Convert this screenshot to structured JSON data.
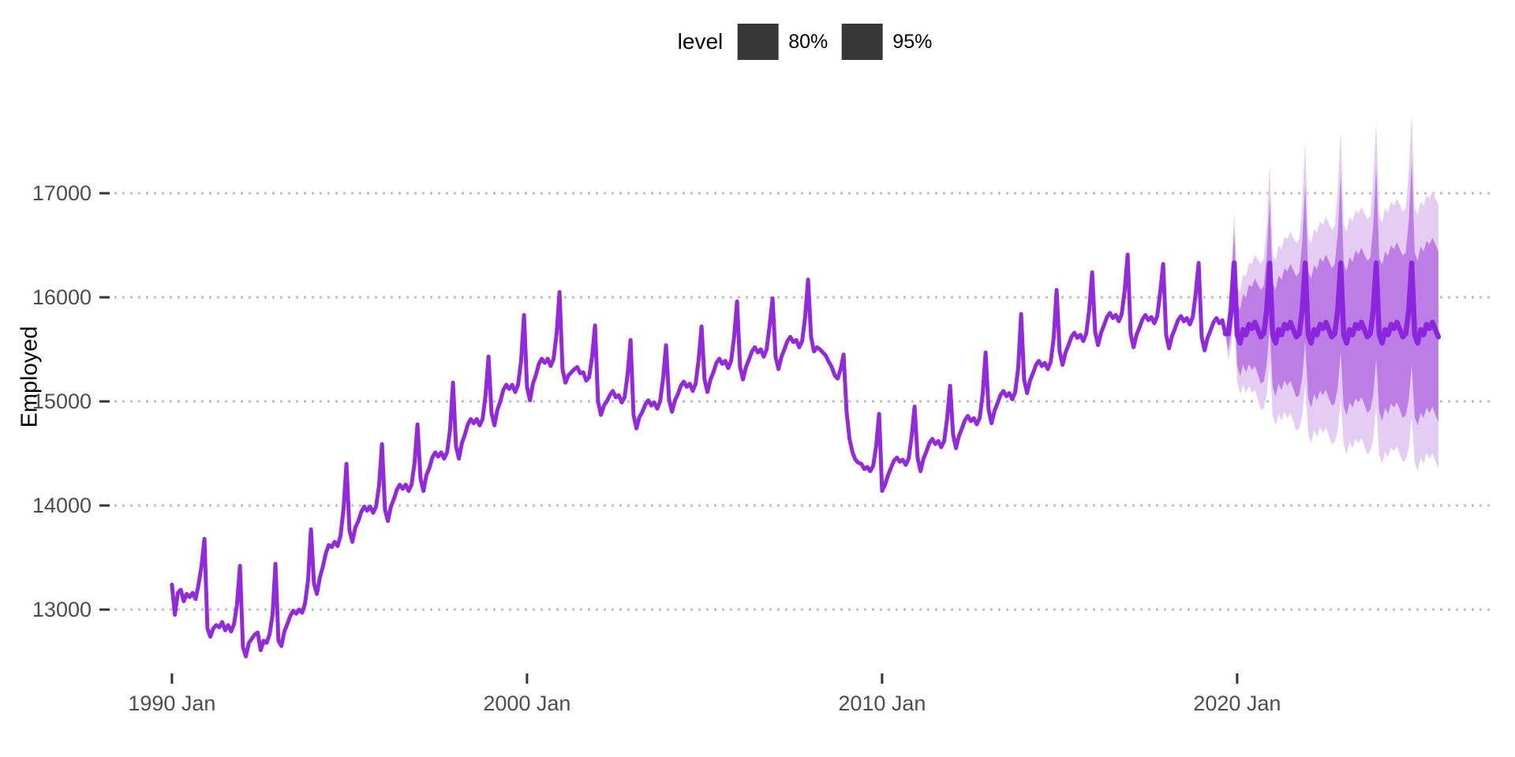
{
  "page": {
    "background": "#FFFFFF"
  },
  "chart_data": {
    "type": "line",
    "title": "",
    "xlabel": "",
    "ylabel": "Employed",
    "legend": {
      "title": "level",
      "entries": [
        "80%",
        "95%"
      ],
      "position": "top-center"
    },
    "x_ticks": [
      {
        "label": "1990 Jan",
        "value": 1990
      },
      {
        "label": "2000 Jan",
        "value": 2000
      },
      {
        "label": "2010 Jan",
        "value": 2010
      },
      {
        "label": "2020 Jan",
        "value": 2020
      }
    ],
    "y_ticks": [
      {
        "label": "13000",
        "value": 13000
      },
      {
        "label": "14000",
        "value": 14000
      },
      {
        "label": "15000",
        "value": 15000
      },
      {
        "label": "16000",
        "value": 16000
      },
      {
        "label": "17000",
        "value": 17000
      }
    ],
    "layout": {
      "xlim": [
        1988.38,
        2027.27
      ],
      "ylim": [
        12417,
        18061
      ],
      "grid": "horizontal-dotted",
      "legend_position": "top"
    },
    "colors": {
      "historical_line": "#9229DC",
      "forecast_line": "#8B26DE",
      "level_80": "#BC7EE4",
      "level_95": "#E4CCF2",
      "legend_key": "#373737",
      "gridline": "#BEBEBE",
      "tick_text": "#4D4D4D",
      "tick_mark": "#333333"
    },
    "series": {
      "historical": {
        "name": "Employed",
        "start_year": 1990,
        "start_month": 1,
        "frequency": "monthly",
        "values": [
          13240,
          12950,
          13160,
          13190,
          13080,
          13150,
          13120,
          13160,
          13100,
          13240,
          13420,
          13680,
          12820,
          12740,
          12820,
          12850,
          12830,
          12880,
          12800,
          12850,
          12790,
          12860,
          13050,
          13420,
          12640,
          12550,
          12680,
          12720,
          12760,
          12780,
          12610,
          12700,
          12680,
          12760,
          12950,
          13440,
          12700,
          12650,
          12790,
          12860,
          12940,
          12990,
          12960,
          13000,
          12970,
          13060,
          13280,
          13770,
          13250,
          13150,
          13310,
          13410,
          13540,
          13620,
          13600,
          13650,
          13610,
          13710,
          13970,
          14400,
          13760,
          13650,
          13790,
          13850,
          13940,
          13990,
          13950,
          13990,
          13930,
          13990,
          14190,
          14590,
          13960,
          13850,
          13990,
          14060,
          14150,
          14200,
          14160,
          14200,
          14140,
          14200,
          14410,
          14780,
          14260,
          14140,
          14290,
          14360,
          14460,
          14510,
          14470,
          14510,
          14450,
          14510,
          14730,
          15180,
          14570,
          14450,
          14600,
          14680,
          14780,
          14830,
          14790,
          14830,
          14770,
          14830,
          15060,
          15430,
          14890,
          14770,
          14920,
          15000,
          15110,
          15160,
          15120,
          15160,
          15090,
          15160,
          15390,
          15830,
          15140,
          15010,
          15170,
          15250,
          15360,
          15410,
          15370,
          15410,
          15340,
          15410,
          15650,
          16050,
          15310,
          15180,
          15250,
          15280,
          15310,
          15330,
          15270,
          15280,
          15200,
          15230,
          15430,
          15730,
          15000,
          14870,
          14960,
          15000,
          15060,
          15100,
          15040,
          15060,
          14990,
          15040,
          15260,
          15590,
          14870,
          14740,
          14850,
          14900,
          14970,
          15010,
          14960,
          14990,
          14930,
          15000,
          15220,
          15540,
          15020,
          14900,
          15010,
          15070,
          15150,
          15190,
          15140,
          15170,
          15100,
          15170,
          15400,
          15720,
          15210,
          15090,
          15210,
          15280,
          15370,
          15410,
          15360,
          15390,
          15320,
          15390,
          15620,
          15960,
          15330,
          15210,
          15330,
          15400,
          15480,
          15520,
          15470,
          15500,
          15430,
          15500,
          15730,
          15990,
          15430,
          15310,
          15430,
          15500,
          15580,
          15620,
          15570,
          15590,
          15520,
          15580,
          15810,
          16170,
          15620,
          15480,
          15520,
          15500,
          15470,
          15440,
          15380,
          15330,
          15250,
          15220,
          15310,
          15450,
          14900,
          14640,
          14510,
          14440,
          14410,
          14400,
          14350,
          14370,
          14330,
          14380,
          14570,
          14880,
          14140,
          14200,
          14290,
          14360,
          14430,
          14460,
          14420,
          14440,
          14390,
          14450,
          14670,
          14950,
          14460,
          14330,
          14450,
          14520,
          14600,
          14640,
          14590,
          14620,
          14560,
          14620,
          14840,
          15150,
          14680,
          14550,
          14670,
          14740,
          14820,
          14860,
          14810,
          14840,
          14780,
          14840,
          15070,
          15470,
          14920,
          14790,
          14910,
          14980,
          15060,
          15100,
          15050,
          15080,
          15020,
          15090,
          15320,
          15840,
          15210,
          15080,
          15200,
          15270,
          15350,
          15390,
          15340,
          15370,
          15310,
          15380,
          15610,
          16070,
          15480,
          15350,
          15470,
          15540,
          15620,
          15660,
          15610,
          15640,
          15580,
          15650,
          15880,
          16240,
          15670,
          15540,
          15660,
          15730,
          15810,
          15850,
          15800,
          15830,
          15770,
          15840,
          16070,
          16410,
          15650,
          15520,
          15640,
          15710,
          15790,
          15830,
          15780,
          15810,
          15750,
          15820,
          16050,
          16320,
          15640,
          15510,
          15630,
          15700,
          15780,
          15820,
          15770,
          15800,
          15740,
          15810,
          16040,
          16330,
          15620,
          15490,
          15610,
          15680,
          15760,
          15800,
          15750,
          15780,
          15650
        ]
      },
      "forecast": {
        "name": "forecast",
        "start_year": 2019,
        "start_month": 10,
        "frequency": "monthly",
        "mean": [
          15650,
          15880,
          16330,
          15640,
          15560,
          15690,
          15640,
          15740,
          15700,
          15760,
          15690,
          15620,
          15650,
          15880,
          16330,
          15640,
          15560,
          15690,
          15640,
          15740,
          15700,
          15760,
          15690,
          15620,
          15650,
          15880,
          16330,
          15640,
          15560,
          15690,
          15640,
          15740,
          15700,
          15760,
          15690,
          15620,
          15650,
          15880,
          16330,
          15640,
          15560,
          15690,
          15640,
          15740,
          15700,
          15760,
          15690,
          15620,
          15650,
          15880,
          16330,
          15640,
          15560,
          15690,
          15640,
          15740,
          15700,
          15760,
          15690,
          15620,
          15650,
          15880,
          16330,
          15640,
          15560,
          15690,
          15640,
          15740,
          15700,
          15760,
          15690,
          15620
        ],
        "lo80": [
          15490,
          15650,
          16010,
          15350,
          15240,
          15350,
          15280,
          15360,
          15300,
          15340,
          15260,
          15170,
          15190,
          15360,
          15720,
          15140,
          15050,
          15170,
          15110,
          15200,
          15150,
          15200,
          15120,
          15040,
          15060,
          15230,
          15580,
          15030,
          14940,
          15070,
          15010,
          15100,
          15060,
          15110,
          15030,
          14960,
          14980,
          15140,
          15480,
          14950,
          14870,
          14990,
          14940,
          15030,
          14990,
          15040,
          14970,
          14890,
          14920,
          15070,
          15410,
          14900,
          14810,
          14940,
          14880,
          14980,
          14940,
          14990,
          14920,
          14840,
          14870,
          15020,
          15350,
          14850,
          14770,
          14890,
          14840,
          14940,
          14890,
          14950,
          14870,
          14800
        ],
        "hi80": [
          15810,
          16110,
          16650,
          15930,
          15880,
          16030,
          16000,
          16120,
          16100,
          16180,
          16120,
          16070,
          16110,
          16400,
          16940,
          16140,
          16070,
          16210,
          16170,
          16280,
          16250,
          16320,
          16260,
          16200,
          16240,
          16530,
          17080,
          16250,
          16180,
          16310,
          16270,
          16380,
          16340,
          16410,
          16350,
          16280,
          16320,
          16620,
          17180,
          16330,
          16250,
          16390,
          16340,
          16450,
          16410,
          16480,
          16410,
          16350,
          16380,
          16690,
          17250,
          16380,
          16310,
          16440,
          16400,
          16500,
          16460,
          16530,
          16460,
          16400,
          16430,
          16740,
          17310,
          16430,
          16350,
          16490,
          16440,
          16540,
          16510,
          16570,
          16510,
          16440
        ],
        "lo95": [
          15400,
          15520,
          15840,
          15190,
          15070,
          15160,
          15080,
          15150,
          15080,
          15110,
          15020,
          14920,
          14930,
          15070,
          15380,
          14860,
          14770,
          14880,
          14820,
          14900,
          14840,
          14890,
          14810,
          14720,
          14740,
          14870,
          15160,
          14690,
          14600,
          14720,
          14660,
          14750,
          14700,
          14750,
          14670,
          14590,
          14610,
          14730,
          15010,
          14580,
          14490,
          14610,
          14550,
          14640,
          14600,
          14650,
          14570,
          14490,
          14520,
          14630,
          14960,
          14490,
          14400,
          14520,
          14470,
          14560,
          14520,
          14570,
          14490,
          14420,
          14440,
          14550,
          14850,
          14420,
          14330,
          14460,
          14400,
          14500,
          14450,
          14500,
          14430,
          14350
        ],
        "hi95": [
          15900,
          16240,
          16820,
          16090,
          16050,
          16220,
          16200,
          16330,
          16320,
          16410,
          16360,
          16320,
          16370,
          16690,
          17280,
          16420,
          16350,
          16500,
          16460,
          16580,
          16560,
          16630,
          16570,
          16520,
          16560,
          16890,
          17500,
          16590,
          16520,
          16660,
          16620,
          16730,
          16700,
          16770,
          16710,
          16650,
          16690,
          17030,
          17600,
          16700,
          16630,
          16770,
          16730,
          16840,
          16800,
          16870,
          16810,
          16750,
          16780,
          17130,
          17680,
          16790,
          16720,
          16860,
          16810,
          16920,
          16880,
          16950,
          16890,
          16820,
          16860,
          17210,
          17760,
          16860,
          16790,
          16920,
          16880,
          16980,
          16950,
          17020,
          16950,
          16890
        ]
      }
    }
  }
}
